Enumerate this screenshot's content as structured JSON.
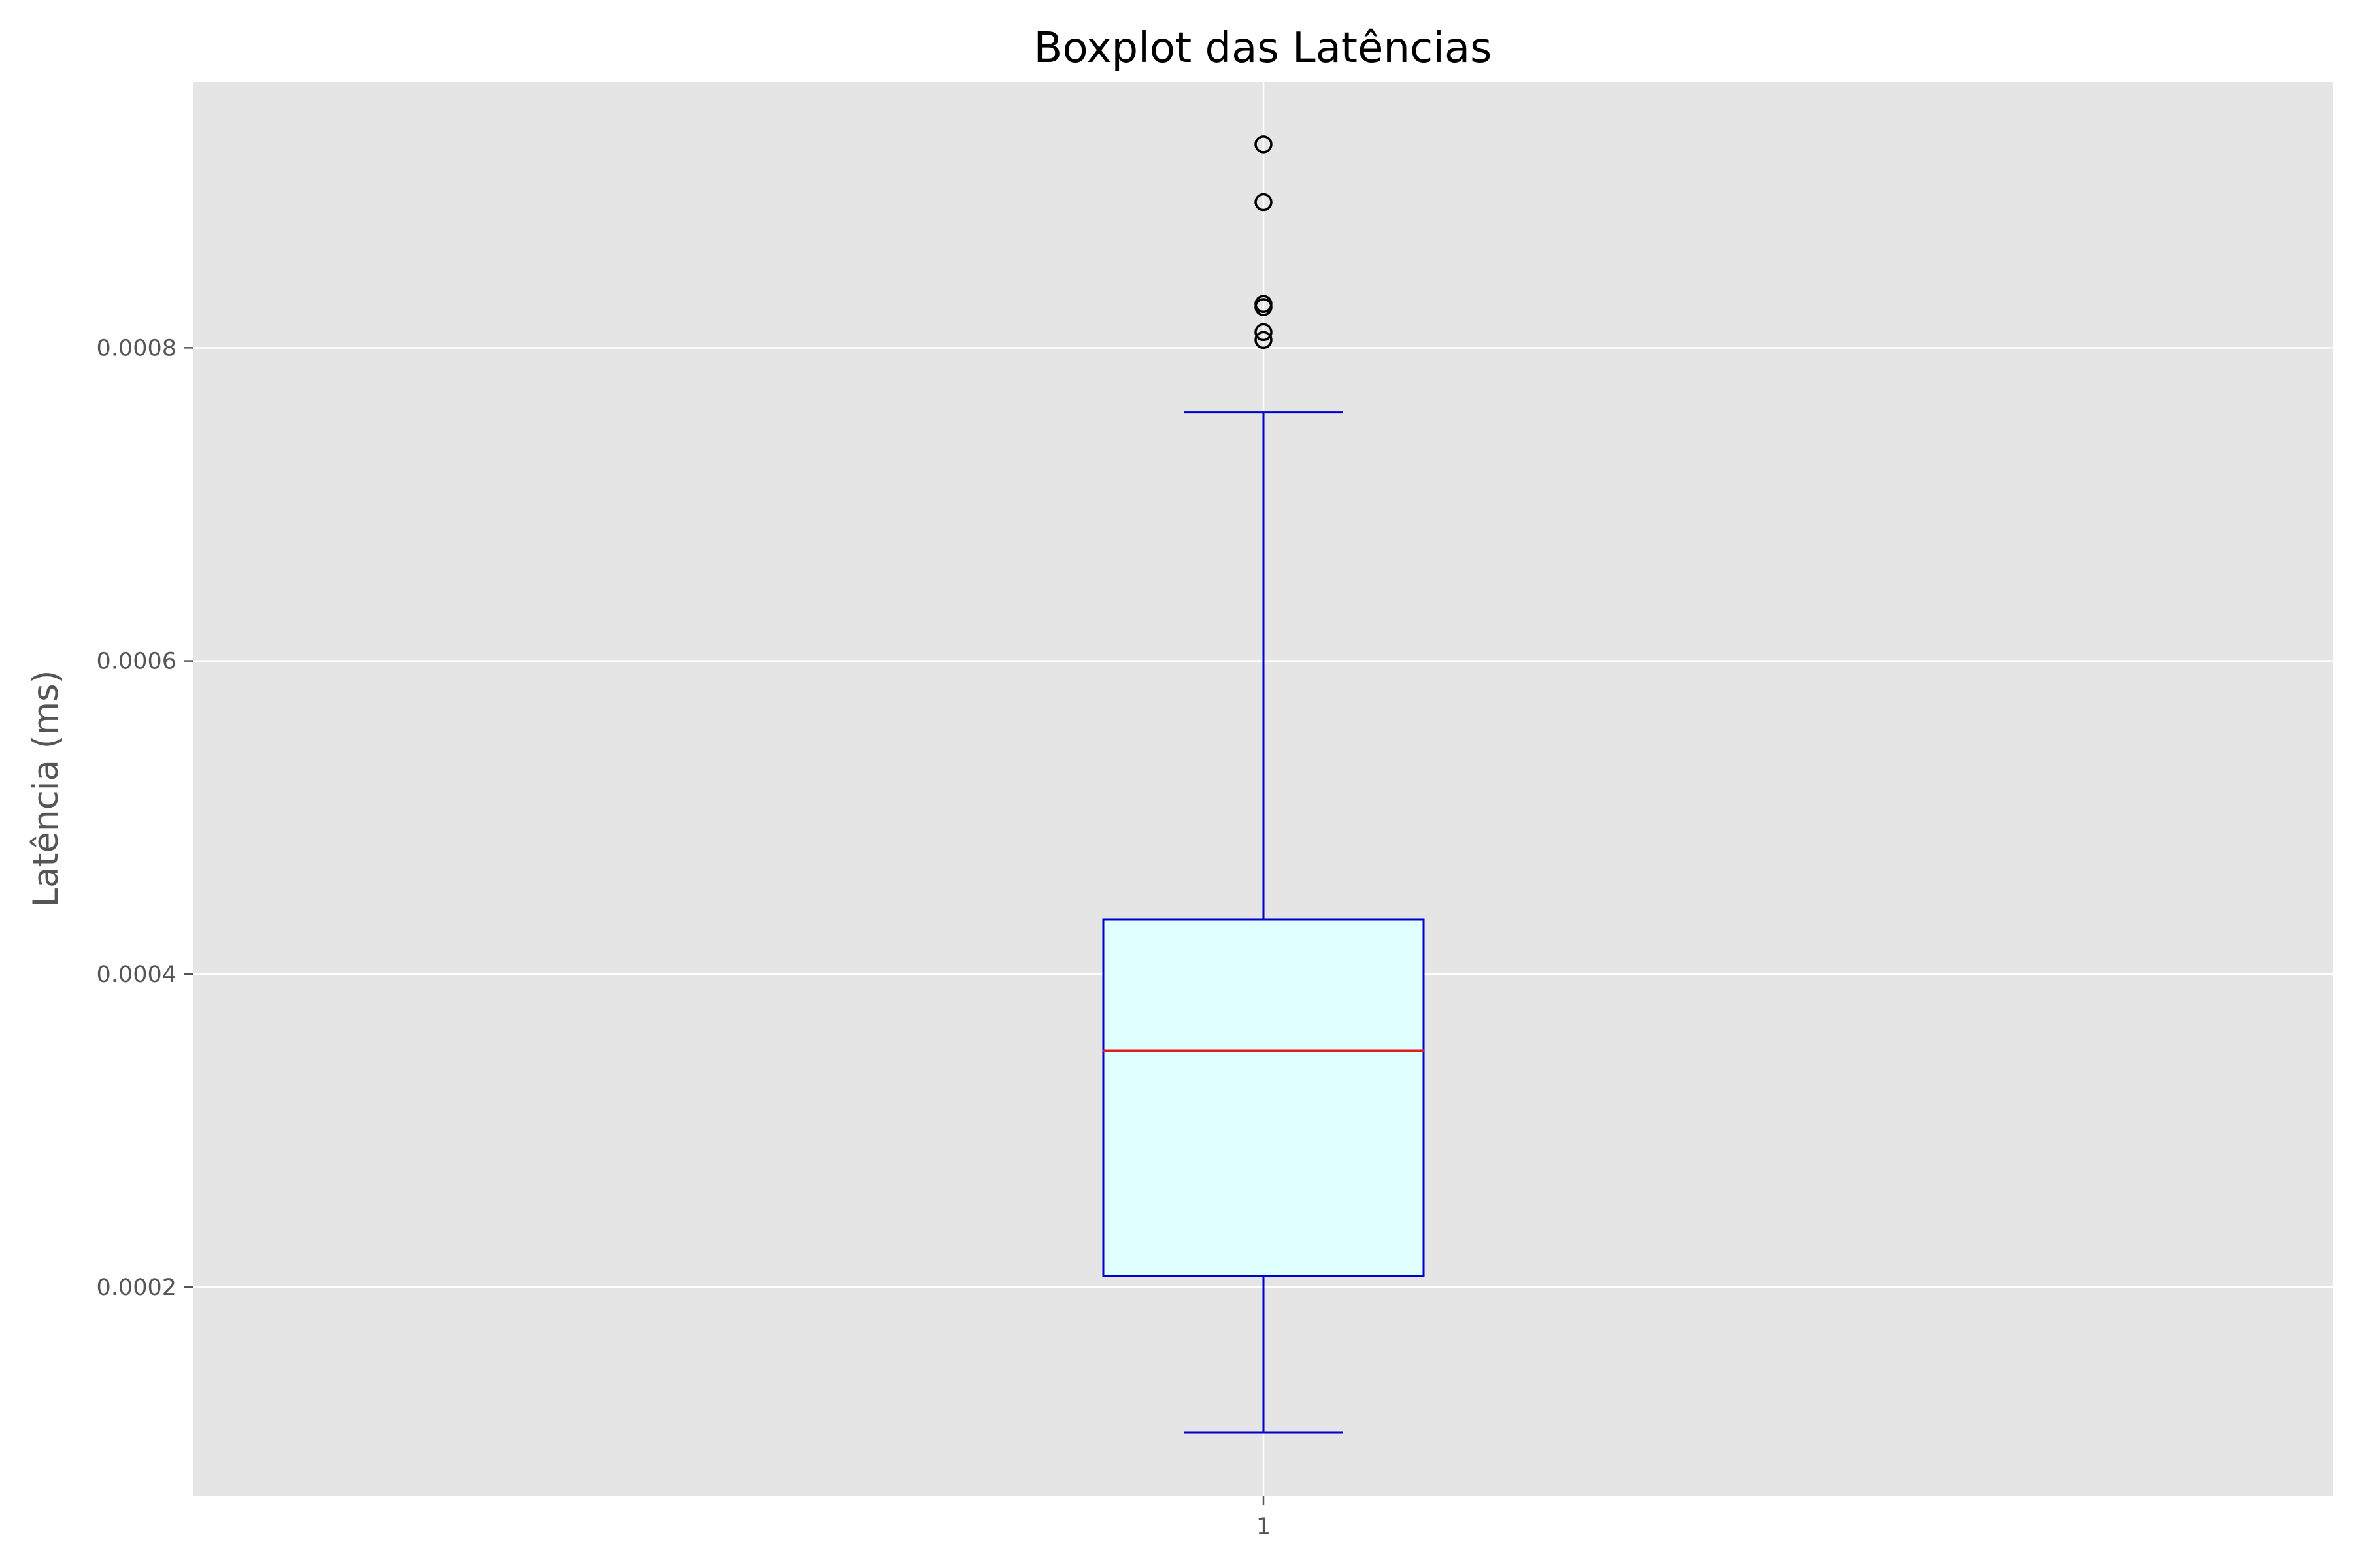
{
  "chart_data": {
    "type": "boxplot",
    "title": "Boxplot das Latências",
    "xlabel": "",
    "ylabel": "Latência (ms)",
    "categories": [
      "1"
    ],
    "ylim": [
      6.65e-05,
      0.00097
    ],
    "yticks": [
      {
        "value": 0.0002,
        "label": "0.0002"
      },
      {
        "value": 0.0004,
        "label": "0.0004"
      },
      {
        "value": 0.0006,
        "label": "0.0006"
      },
      {
        "value": 0.0008,
        "label": "0.0008"
      }
    ],
    "grid": true,
    "boxes": [
      {
        "category": "1",
        "whisker_low": 0.000107,
        "q1": 0.000207,
        "median": 0.000351,
        "q3": 0.000435,
        "whisker_high": 0.000759,
        "outliers": [
          0.00093,
          0.000893,
          0.000828,
          0.000826,
          0.00081,
          0.000805
        ]
      }
    ],
    "colors": {
      "plot_background": "#e5e5e5",
      "grid": "#ffffff",
      "box_fill": "#e0ffff",
      "box_edge": "#0000cd",
      "whisker": "#0000cd",
      "median": "#dd1c1c",
      "outlier_edge": "#000000"
    }
  }
}
